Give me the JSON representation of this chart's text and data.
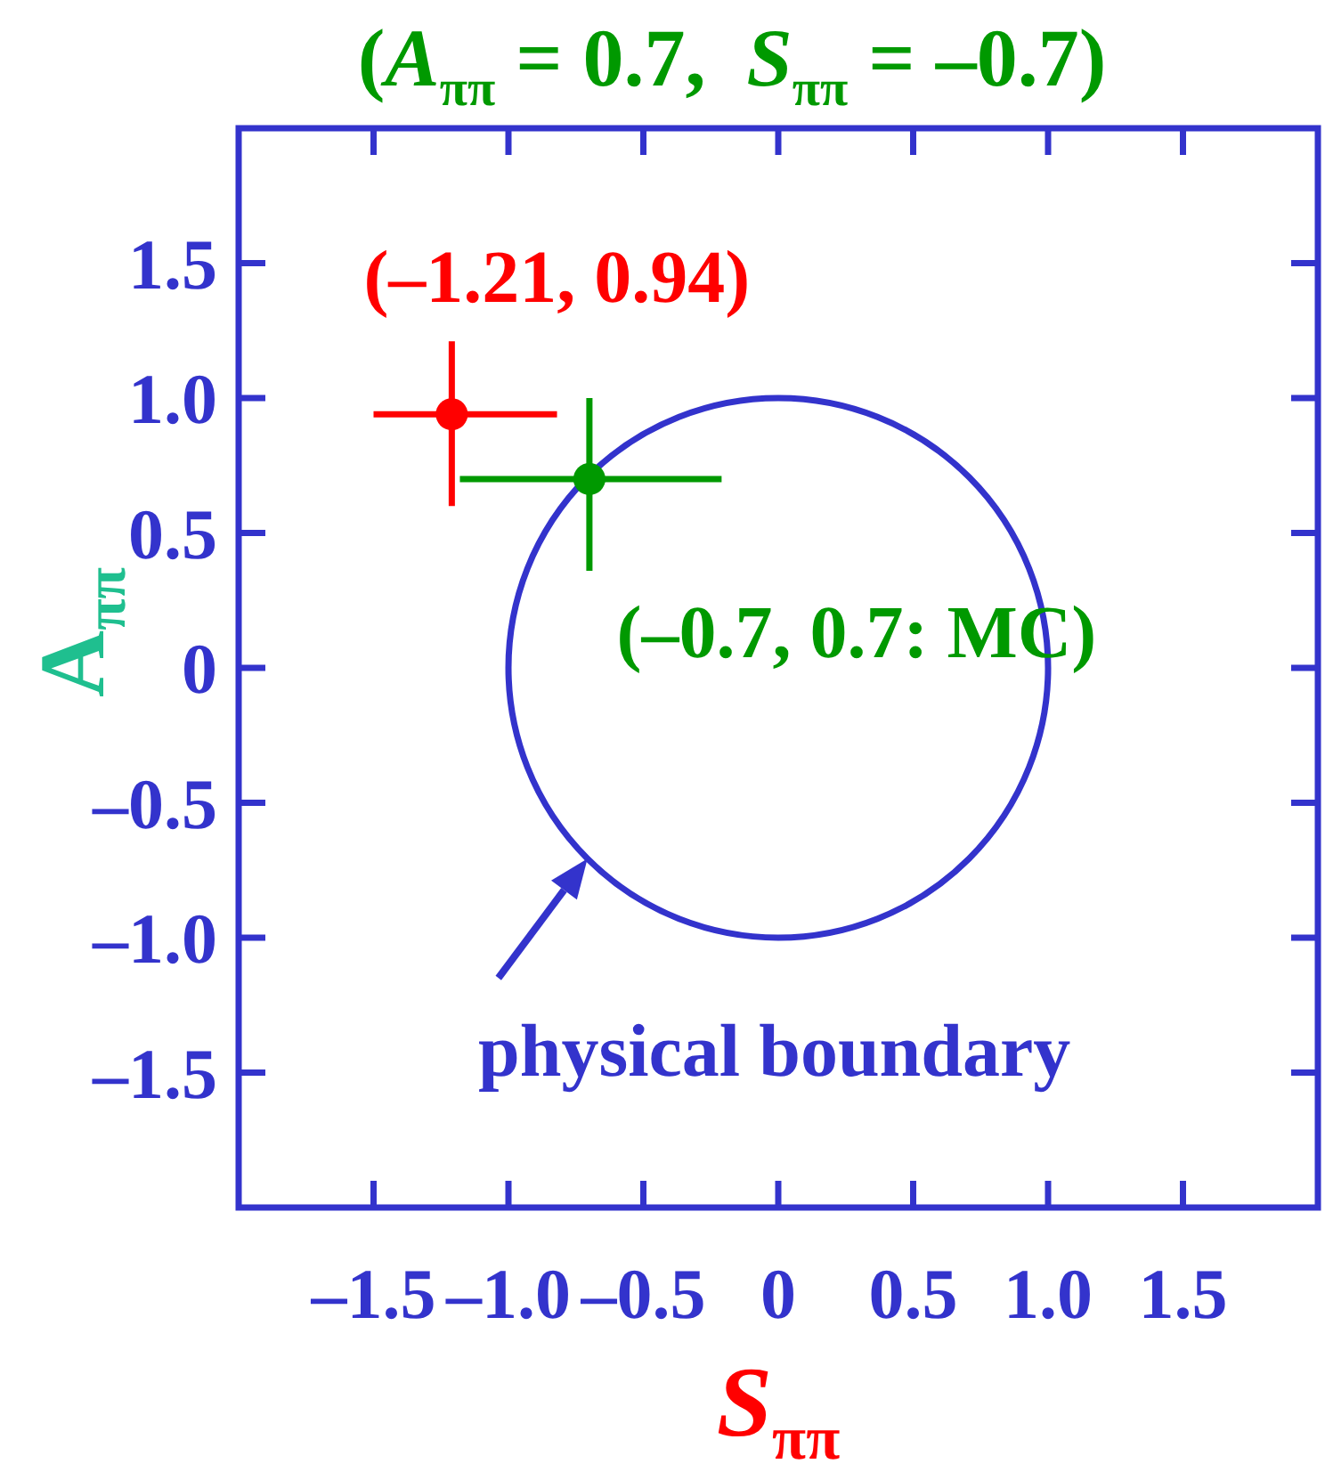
{
  "chart_data": {
    "type": "scatter",
    "title": "(A$_{ππ}$ = 0.7,  S$_{ππ}$ = –0.7)",
    "xlabel": "S$_{ππ}$",
    "ylabel": "A$_{ππ}$",
    "xlim": [
      -2,
      2
    ],
    "ylim": [
      -2,
      2
    ],
    "xticks": [
      {
        "value": -1.5,
        "label": "–1.5"
      },
      {
        "value": -1,
        "label": "–1.0"
      },
      {
        "value": -0.5,
        "label": "–0.5"
      },
      0,
      0.5,
      {
        "value": 1,
        "label": "1.0"
      },
      1.5
    ],
    "yticks": [
      {
        "value": -1.5,
        "label": "–1.5"
      },
      {
        "value": -1,
        "label": "–1.0"
      },
      {
        "value": -0.5,
        "label": "–0.5"
      },
      0,
      0.5,
      {
        "value": 1,
        "label": "1.0"
      },
      1.5
    ],
    "marker": "circle",
    "series": [
      {
        "color": "#ff0000",
        "x": [
          -1.21
        ],
        "values": [
          0.94
        ],
        "errors": [
          [
            0.6,
            1.21
          ]
        ],
        "xerrors": [
          [
            -1.5,
            -0.82
          ]
        ]
      },
      {
        "color": "#009900",
        "x": [
          -0.7
        ],
        "values": [
          0.7
        ],
        "errors": [
          [
            0.36,
            1.0
          ]
        ],
        "xerrors": [
          [
            -1.18,
            -0.21
          ]
        ]
      }
    ],
    "annotations": [
      {
        "text": "(–1.21, 0.94)",
        "x": -1.21,
        "y": 0.94
      },
      {
        "text": "(–0.7, 0.7: MC)",
        "x": -0.7,
        "y": 0.7
      },
      "physical boundary"
    ]
  }
}
